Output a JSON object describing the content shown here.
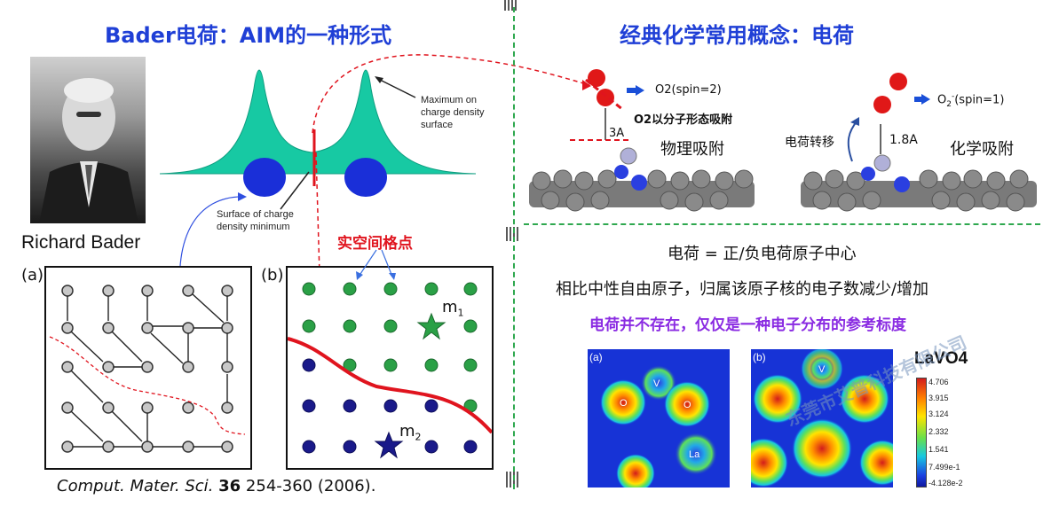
{
  "left": {
    "title": "Bader电荷：AIM的一种形式",
    "person_name": "Richard Bader",
    "top_diagram": {
      "label_max": "Maximum on charge density surface",
      "label_min": "Surface of charge density minimum"
    },
    "panel_a_label": "(a)",
    "panel_b_label": "(b)",
    "grid_points_label": "实空间格点",
    "m1": "m",
    "m1_sub": "1",
    "m2": "m",
    "m2_sub": "2",
    "citation": {
      "journal": "Comput. Mater. Sci.",
      "volume": "36",
      "pages_year": " 254-360 (2006)."
    }
  },
  "right": {
    "title": "经典化学常用概念：电荷",
    "physisorption": {
      "label": "物理吸附",
      "spin_label": "O2(spin=2)",
      "distance": "3A",
      "note": "O2以分子形态吸附"
    },
    "chemisorption": {
      "label": "化学吸附",
      "spin_label_main": "O",
      "spin_label_sub": "2",
      "spin_label_sup": "-",
      "spin_label_rest": "(spin=1)",
      "distance": "1.8A",
      "charge_transfer": "电荷转移"
    },
    "lines": [
      "电荷 = 正/负电荷原子中心",
      "相比中性自由原子，归属该原子核的电子数减少/增加",
      "电荷并不存在，仅仅是一种电子分布的参考标度"
    ],
    "density_maps": {
      "title": "LaVO4",
      "panel_a": "(a)",
      "panel_b": "(b)",
      "atom_labels_a": [
        "V",
        "O",
        "O",
        "La"
      ],
      "atom_labels_b": [
        "V"
      ],
      "colorbar_ticks": [
        "4.706",
        "3.915",
        "3.124",
        "2.332",
        "1.541",
        "7.499e-1",
        "-4.128e-2"
      ]
    },
    "watermark": "东莞市艾普科技有限公司"
  },
  "colors": {
    "title_blue": "#1f3fd6",
    "accent_red": "#e0141e",
    "purple": "#8a2be2",
    "divider_green": "#2fa84f",
    "teal": "#17c9a3",
    "atom_blue": "#1a2fd8"
  }
}
